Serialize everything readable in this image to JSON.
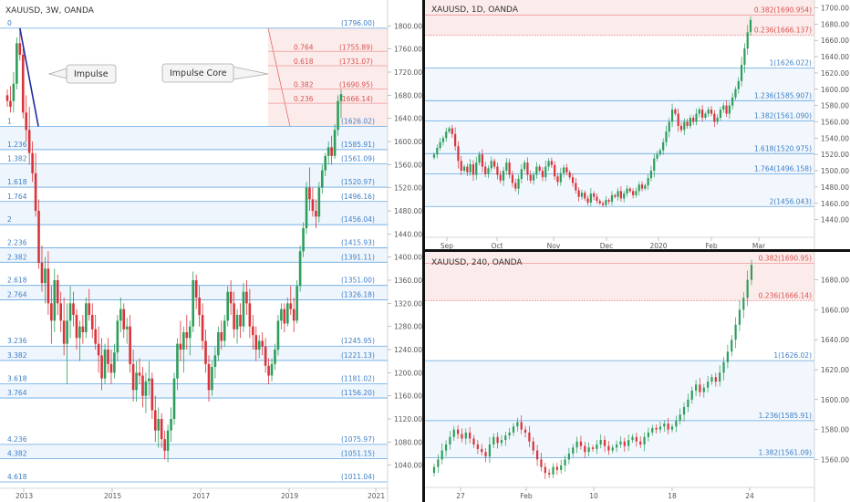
{
  "colors": {
    "up": "#2e9e5b",
    "down": "#d9343a",
    "fib": "#64a7e0",
    "fibText": "#3d7fc6",
    "red": "#e05a5a",
    "impulse": "#1f2a9e"
  },
  "chart_data": [
    {
      "type": "candlestick",
      "title": "XAUUSD, 3W, OANDA",
      "ylim": [
        1000,
        1810
      ],
      "y_ticks": [
        1040,
        1080,
        1120,
        1160,
        1200,
        1240,
        1280,
        1320,
        1360,
        1400,
        1440,
        1480,
        1520,
        1560,
        1600,
        1640,
        1680,
        1720,
        1760,
        1800
      ],
      "x_ticks": [
        "2013",
        "2015",
        "2017",
        "2019",
        "2021"
      ],
      "fib_levels": [
        {
          "ratio": "0",
          "price": 1796.0
        },
        {
          "ratio": "1",
          "price": 1626.02
        },
        {
          "ratio": "1.236",
          "price": 1585.91
        },
        {
          "ratio": "1.382",
          "price": 1561.09
        },
        {
          "ratio": "1.618",
          "price": 1520.97
        },
        {
          "ratio": "1.764",
          "price": 1496.16
        },
        {
          "ratio": "2",
          "price": 1456.04
        },
        {
          "ratio": "2.236",
          "price": 1415.93
        },
        {
          "ratio": "2.382",
          "price": 1391.11
        },
        {
          "ratio": "2.618",
          "price": 1351.0
        },
        {
          "ratio": "2.764",
          "price": 1326.18
        },
        {
          "ratio": "3.236",
          "price": 1245.95
        },
        {
          "ratio": "3.382",
          "price": 1221.13
        },
        {
          "ratio": "3.618",
          "price": 1181.02
        },
        {
          "ratio": "3.764",
          "price": 1156.2
        },
        {
          "ratio": "4.236",
          "price": 1075.97
        },
        {
          "ratio": "4.382",
          "price": 1051.15
        },
        {
          "ratio": "4.618",
          "price": 1011.04
        }
      ],
      "retracement_levels": [
        {
          "ratio": "0.764",
          "price": 1755.89
        },
        {
          "ratio": "0.618",
          "price": 1731.07
        },
        {
          "ratio": "0.382",
          "price": 1690.95
        },
        {
          "ratio": "0.236",
          "price": 1666.14
        }
      ],
      "annotations": [
        "Impulse",
        "Impulse Core"
      ],
      "ohlc": [
        [
          1680,
          1690,
          1660,
          1670
        ],
        [
          1670,
          1696,
          1650,
          1660
        ],
        [
          1670,
          1720,
          1650,
          1700
        ],
        [
          1700,
          1780,
          1690,
          1770
        ],
        [
          1770,
          1796,
          1740,
          1750
        ],
        [
          1750,
          1760,
          1640,
          1650
        ],
        [
          1650,
          1680,
          1600,
          1620
        ],
        [
          1620,
          1660,
          1560,
          1580
        ],
        [
          1580,
          1600,
          1530,
          1545
        ],
        [
          1545,
          1580,
          1470,
          1480
        ],
        [
          1480,
          1500,
          1380,
          1390
        ],
        [
          1390,
          1420,
          1340,
          1355
        ],
        [
          1355,
          1400,
          1320,
          1380
        ],
        [
          1380,
          1410,
          1300,
          1320
        ],
        [
          1320,
          1350,
          1250,
          1290
        ],
        [
          1290,
          1380,
          1270,
          1360
        ],
        [
          1360,
          1370,
          1300,
          1320
        ],
        [
          1320,
          1340,
          1270,
          1290
        ],
        [
          1290,
          1330,
          1230,
          1250
        ],
        [
          1250,
          1320,
          1180,
          1290
        ],
        [
          1290,
          1350,
          1260,
          1320
        ],
        [
          1320,
          1340,
          1280,
          1300
        ],
        [
          1300,
          1310,
          1240,
          1260
        ],
        [
          1260,
          1290,
          1220,
          1280
        ],
        [
          1280,
          1300,
          1250,
          1270
        ],
        [
          1270,
          1330,
          1260,
          1320
        ],
        [
          1320,
          1345,
          1290,
          1300
        ],
        [
          1300,
          1320,
          1260,
          1275
        ],
        [
          1275,
          1300,
          1240,
          1250
        ],
        [
          1250,
          1280,
          1200,
          1230
        ],
        [
          1230,
          1260,
          1170,
          1190
        ],
        [
          1190,
          1250,
          1180,
          1240
        ],
        [
          1240,
          1260,
          1200,
          1215
        ],
        [
          1215,
          1240,
          1180,
          1200
        ],
        [
          1200,
          1250,
          1190,
          1235
        ],
        [
          1235,
          1300,
          1220,
          1290
        ],
        [
          1290,
          1330,
          1270,
          1310
        ],
        [
          1310,
          1320,
          1260,
          1275
        ],
        [
          1275,
          1295,
          1250,
          1280
        ],
        [
          1280,
          1300,
          1200,
          1215
        ],
        [
          1215,
          1240,
          1150,
          1170
        ],
        [
          1170,
          1220,
          1150,
          1200
        ],
        [
          1200,
          1225,
          1180,
          1195
        ],
        [
          1195,
          1210,
          1140,
          1160
        ],
        [
          1160,
          1200,
          1130,
          1185
        ],
        [
          1185,
          1220,
          1160,
          1190
        ],
        [
          1190,
          1200,
          1120,
          1135
        ],
        [
          1135,
          1160,
          1080,
          1100
        ],
        [
          1100,
          1140,
          1070,
          1120
        ],
        [
          1120,
          1130,
          1070,
          1085
        ],
        [
          1085,
          1100,
          1050,
          1065
        ],
        [
          1065,
          1110,
          1045,
          1100
        ],
        [
          1100,
          1140,
          1080,
          1120
        ],
        [
          1120,
          1200,
          1110,
          1190
        ],
        [
          1190,
          1260,
          1170,
          1250
        ],
        [
          1250,
          1290,
          1220,
          1240
        ],
        [
          1240,
          1280,
          1200,
          1270
        ],
        [
          1270,
          1300,
          1240,
          1260
        ],
        [
          1260,
          1290,
          1230,
          1280
        ],
        [
          1280,
          1375,
          1270,
          1360
        ],
        [
          1360,
          1370,
          1310,
          1330
        ],
        [
          1330,
          1350,
          1280,
          1300
        ],
        [
          1300,
          1320,
          1240,
          1255
        ],
        [
          1255,
          1275,
          1200,
          1215
        ],
        [
          1215,
          1230,
          1150,
          1170
        ],
        [
          1170,
          1220,
          1160,
          1210
        ],
        [
          1210,
          1245,
          1190,
          1230
        ],
        [
          1230,
          1280,
          1220,
          1270
        ],
        [
          1270,
          1290,
          1240,
          1255
        ],
        [
          1255,
          1300,
          1245,
          1290
        ],
        [
          1290,
          1350,
          1280,
          1340
        ],
        [
          1340,
          1360,
          1300,
          1320
        ],
        [
          1320,
          1340,
          1260,
          1275
        ],
        [
          1275,
          1310,
          1250,
          1300
        ],
        [
          1300,
          1320,
          1260,
          1280
        ],
        [
          1280,
          1355,
          1270,
          1340
        ],
        [
          1340,
          1360,
          1300,
          1320
        ],
        [
          1320,
          1345,
          1260,
          1280
        ],
        [
          1280,
          1300,
          1240,
          1265
        ],
        [
          1265,
          1280,
          1220,
          1240
        ],
        [
          1240,
          1265,
          1225,
          1255
        ],
        [
          1255,
          1270,
          1230,
          1245
        ],
        [
          1245,
          1260,
          1200,
          1212
        ],
        [
          1212,
          1225,
          1180,
          1195
        ],
        [
          1195,
          1225,
          1185,
          1215
        ],
        [
          1215,
          1250,
          1205,
          1240
        ],
        [
          1240,
          1300,
          1230,
          1290
        ],
        [
          1290,
          1320,
          1275,
          1310
        ],
        [
          1310,
          1320,
          1270,
          1285
        ],
        [
          1285,
          1330,
          1280,
          1320
        ],
        [
          1320,
          1350,
          1300,
          1310
        ],
        [
          1310,
          1330,
          1270,
          1290
        ],
        [
          1290,
          1360,
          1285,
          1350
        ],
        [
          1350,
          1420,
          1340,
          1410
        ],
        [
          1410,
          1460,
          1400,
          1450
        ],
        [
          1450,
          1530,
          1440,
          1520
        ],
        [
          1520,
          1555,
          1480,
          1500
        ],
        [
          1500,
          1520,
          1470,
          1480
        ],
        [
          1480,
          1500,
          1450,
          1470
        ],
        [
          1470,
          1530,
          1460,
          1520
        ],
        [
          1520,
          1560,
          1510,
          1550
        ],
        [
          1550,
          1580,
          1540,
          1575
        ],
        [
          1575,
          1600,
          1560,
          1590
        ],
        [
          1590,
          1610,
          1560,
          1575
        ],
        [
          1575,
          1630,
          1570,
          1620
        ],
        [
          1620,
          1680,
          1610,
          1670
        ],
        [
          1670,
          1690,
          1640,
          1682
        ]
      ]
    },
    {
      "type": "candlestick",
      "title": "XAUUSD, 1D, OANDA",
      "ylim": [
        1425,
        1705
      ],
      "y_ticks": [
        1440,
        1460,
        1480,
        1500,
        1520,
        1540,
        1560,
        1580,
        1600,
        1620,
        1640,
        1660,
        1680,
        1700
      ],
      "x_ticks": [
        "Sep",
        "Oct",
        "Nov",
        "Dec",
        "2020",
        "Feb",
        "Mar"
      ],
      "fib_levels": [
        {
          "ratio": "0.382",
          "price": 1690.954
        },
        {
          "ratio": "0.236",
          "price": 1666.137
        },
        {
          "ratio": "1",
          "price": 1626.022
        },
        {
          "ratio": "1.236",
          "price": 1585.907
        },
        {
          "ratio": "1.382",
          "price": 1561.09
        },
        {
          "ratio": "1.618",
          "price": 1520.975
        },
        {
          "ratio": "1.764",
          "price": 1496.158
        },
        {
          "ratio": "2",
          "price": 1456.043
        }
      ],
      "closes": [
        1520,
        1528,
        1535,
        1540,
        1548,
        1552,
        1545,
        1530,
        1512,
        1500,
        1505,
        1498,
        1508,
        1495,
        1510,
        1520,
        1505,
        1496,
        1503,
        1512,
        1505,
        1495,
        1488,
        1500,
        1510,
        1495,
        1485,
        1478,
        1490,
        1502,
        1510,
        1495,
        1488,
        1495,
        1505,
        1500,
        1492,
        1505,
        1512,
        1507,
        1493,
        1486,
        1497,
        1504,
        1498,
        1492,
        1485,
        1476,
        1468,
        1473,
        1466,
        1461,
        1472,
        1468,
        1463,
        1460,
        1458,
        1464,
        1462,
        1470,
        1468,
        1475,
        1466,
        1472,
        1478,
        1475,
        1470,
        1475,
        1483,
        1478,
        1482,
        1491,
        1500,
        1515,
        1520,
        1525,
        1535,
        1548,
        1560,
        1575,
        1570,
        1555,
        1550,
        1560,
        1555,
        1565,
        1560,
        1570,
        1575,
        1565,
        1570,
        1575,
        1570,
        1560,
        1565,
        1575,
        1580,
        1570,
        1580,
        1590,
        1600,
        1610,
        1630,
        1650,
        1670,
        1685
      ]
    },
    {
      "type": "candlestick",
      "title": "XAUUSD, 240, OANDA",
      "ylim": [
        1545,
        1695
      ],
      "y_ticks": [
        1560,
        1580,
        1600,
        1620,
        1640,
        1660,
        1680
      ],
      "x_ticks": [
        "27",
        "Feb",
        "10",
        "18",
        "24"
      ],
      "fib_levels": [
        {
          "ratio": "0.382",
          "price": 1690.95
        },
        {
          "ratio": "0.236",
          "price": 1666.14
        },
        {
          "ratio": "1",
          "price": 1626.02
        },
        {
          "ratio": "1.236",
          "price": 1585.91
        },
        {
          "ratio": "1.382",
          "price": 1561.09
        }
      ],
      "closes": [
        1555,
        1560,
        1566,
        1570,
        1575,
        1580,
        1577,
        1574,
        1578,
        1574,
        1570,
        1567,
        1565,
        1562,
        1570,
        1575,
        1571,
        1573,
        1576,
        1578,
        1582,
        1585,
        1580,
        1578,
        1572,
        1566,
        1560,
        1555,
        1551,
        1550,
        1555,
        1553,
        1556,
        1560,
        1564,
        1568,
        1572,
        1569,
        1565,
        1568,
        1567,
        1570,
        1573,
        1569,
        1566,
        1568,
        1570,
        1572,
        1569,
        1573,
        1575,
        1572,
        1570,
        1575,
        1578,
        1581,
        1580,
        1582,
        1584,
        1580,
        1582,
        1586,
        1590,
        1595,
        1600,
        1606,
        1610,
        1605,
        1608,
        1612,
        1615,
        1612,
        1618,
        1625,
        1632,
        1640,
        1650,
        1660,
        1668,
        1680,
        1690
      ]
    }
  ]
}
